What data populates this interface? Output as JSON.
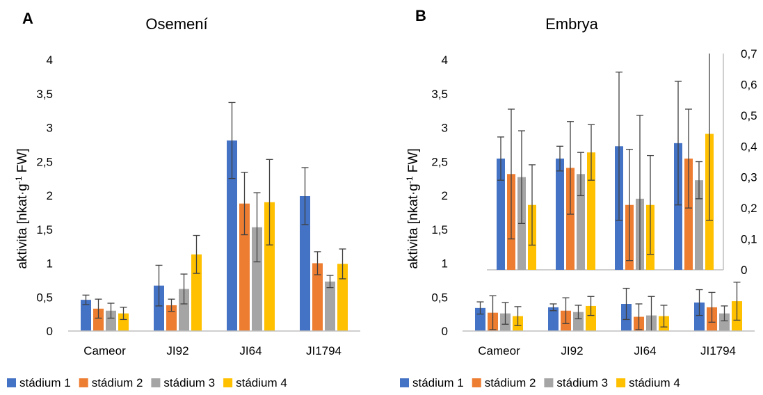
{
  "colors": {
    "s1": "#4472C4",
    "s2": "#ED7D31",
    "s3": "#A5A5A5",
    "s4": "#FFC000",
    "axis": "#BFBFBF",
    "error": "#404040"
  },
  "chart_data": [
    {
      "panel": "A",
      "title": "Osemení",
      "type": "bar",
      "ylabel_main": "aktivita [nkat·g",
      "ylabel_sup": "-1",
      "ylabel_tail": " FW]",
      "ylim": [
        0,
        4
      ],
      "yticks": [
        "0",
        "0,5",
        "1",
        "1,5",
        "2",
        "2,5",
        "3",
        "3,5",
        "4"
      ],
      "categories": [
        "Cameor",
        "JI92",
        "JI64",
        "JI1794"
      ],
      "series": [
        {
          "name": "stádium 1",
          "values": [
            0.46,
            0.67,
            2.81,
            1.99
          ],
          "errors": [
            0.07,
            0.3,
            0.56,
            0.42
          ]
        },
        {
          "name": "stádium 2",
          "values": [
            0.33,
            0.38,
            1.88,
            1.0
          ],
          "errors": [
            0.14,
            0.09,
            0.46,
            0.17
          ]
        },
        {
          "name": "stádium 3",
          "values": [
            0.3,
            0.62,
            1.53,
            0.73
          ],
          "errors": [
            0.11,
            0.22,
            0.51,
            0.09
          ]
        },
        {
          "name": "stádium 4",
          "values": [
            0.26,
            1.13,
            1.9,
            0.99
          ],
          "errors": [
            0.09,
            0.28,
            0.63,
            0.22
          ]
        }
      ]
    },
    {
      "panel": "B",
      "title": "Embrya",
      "type": "bar",
      "ylabel_main": "aktivita [nkat·g",
      "ylabel_sup": "-1",
      "ylabel_tail": " FW]",
      "ylim": [
        0,
        4
      ],
      "yticks": [
        "0",
        "0,5",
        "1",
        "1,5",
        "2",
        "2,5",
        "3",
        "3,5",
        "4"
      ],
      "ylim_right": [
        0,
        0.7
      ],
      "yticks_right": [
        "0",
        "0,1",
        "0,2",
        "0,3",
        "0,4",
        "0,5",
        "0,6",
        "0,7"
      ],
      "categories": [
        "Cameor",
        "JI92",
        "JI64",
        "JI1794"
      ],
      "series": [
        {
          "name": "stádium 1",
          "values": [
            0.34,
            0.35,
            0.4,
            0.42
          ],
          "errors": [
            0.09,
            0.05,
            0.23,
            0.19
          ]
        },
        {
          "name": "stádium 2",
          "values": [
            0.27,
            0.3,
            0.21,
            0.35
          ],
          "errors": [
            0.25,
            0.19,
            0.19,
            0.22
          ]
        },
        {
          "name": "stádium 3",
          "values": [
            0.26,
            0.28,
            0.23,
            0.26
          ],
          "errors": [
            0.16,
            0.1,
            0.28,
            0.11
          ]
        },
        {
          "name": "stádium 4",
          "values": [
            0.22,
            0.37,
            0.22,
            0.44
          ],
          "errors": [
            0.14,
            0.14,
            0.16,
            0.28
          ]
        }
      ],
      "inset_series": [
        {
          "name": "stádium 1",
          "values": [
            0.36,
            0.36,
            0.4,
            0.41
          ],
          "errors": [
            0.07,
            0.04,
            0.24,
            0.2
          ]
        },
        {
          "name": "stádium 2",
          "values": [
            0.31,
            0.33,
            0.21,
            0.36
          ],
          "errors": [
            0.21,
            0.15,
            0.18,
            0.16
          ]
        },
        {
          "name": "stádium 3",
          "values": [
            0.3,
            0.31,
            0.23,
            0.29
          ],
          "errors": [
            0.15,
            0.07,
            0.27,
            0.06
          ]
        },
        {
          "name": "stádium 4",
          "values": [
            0.21,
            0.38,
            0.21,
            0.44
          ],
          "errors": [
            0.13,
            0.09,
            0.16,
            0.28
          ]
        }
      ]
    }
  ]
}
